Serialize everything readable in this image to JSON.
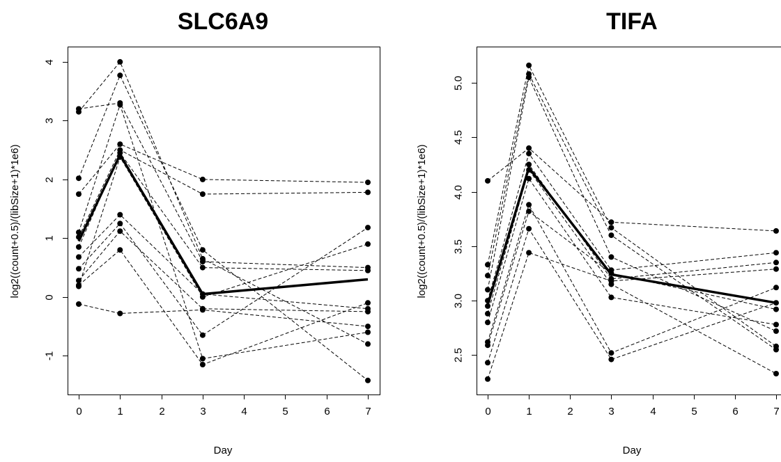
{
  "chart_data": [
    {
      "type": "line",
      "title": "SLC6A9",
      "xlabel": "Day",
      "ylabel": "log2((count+0.5)/(libSize+1)*1e6)",
      "x": [
        0,
        1,
        3,
        7
      ],
      "xlim": [
        0,
        7
      ],
      "ylim": [
        -1.6,
        4.2
      ],
      "x_ticks": [
        "0",
        "1",
        "2",
        "3",
        "4",
        "5",
        "6",
        "7"
      ],
      "y_ticks": [
        "-1",
        "0",
        "1",
        "2",
        "3",
        "4"
      ],
      "series": [
        {
          "values": [
            3.2,
            3.3,
            0.6,
            0.5
          ]
        },
        {
          "values": [
            3.15,
            4.0,
            0.65,
            -0.8
          ]
        },
        {
          "values": [
            2.02,
            3.77,
            0.8,
            -1.42
          ]
        },
        {
          "values": [
            1.75,
            2.6,
            2.0,
            1.95
          ]
        },
        {
          "values": [
            1.1,
            3.27,
            -1.05,
            -0.6
          ]
        },
        {
          "values": [
            1.02,
            2.5,
            1.75,
            1.78
          ]
        },
        {
          "values": [
            0.85,
            2.45,
            0.5,
            0.45
          ]
        },
        {
          "values": [
            0.68,
            1.4,
            0.05,
            -0.2
          ]
        },
        {
          "values": [
            0.48,
            1.25,
            -0.65,
            1.18
          ]
        },
        {
          "values": [
            0.28,
            1.12,
            -0.2,
            -0.25
          ]
        },
        {
          "values": [
            0.2,
            0.8,
            -1.15,
            -0.1
          ]
        },
        {
          "values": [
            0.18,
            2.38,
            0.0,
            0.9
          ]
        },
        {
          "values": [
            -0.12,
            -0.28,
            -0.22,
            -0.5
          ]
        }
      ],
      "mean": {
        "values": [
          0.95,
          2.42,
          0.05,
          0.3
        ]
      }
    },
    {
      "type": "line",
      "title": "TIFA",
      "xlabel": "Day",
      "ylabel": "log2((count+0.5)/(libSize+1)*1e6)",
      "x": [
        0,
        1,
        3,
        7
      ],
      "xlim": [
        0,
        7
      ],
      "ylim": [
        2.17,
        5.3
      ],
      "x_ticks": [
        "0",
        "1",
        "2",
        "3",
        "4",
        "5",
        "6",
        "7"
      ],
      "y_ticks": [
        "2.5",
        "3.0",
        "3.5",
        "4.0",
        "4.5",
        "5.0"
      ],
      "series": [
        {
          "values": [
            4.1,
            4.4,
            3.72,
            3.64
          ]
        },
        {
          "values": [
            3.33,
            5.16,
            3.67,
            2.58
          ]
        },
        {
          "values": [
            3.23,
            5.08,
            3.6,
            2.55
          ]
        },
        {
          "values": [
            3.1,
            5.05,
            3.4,
            2.72
          ]
        },
        {
          "values": [
            3.0,
            4.35,
            3.28,
            3.44
          ]
        },
        {
          "values": [
            2.95,
            4.25,
            3.2,
            3.35
          ]
        },
        {
          "values": [
            2.88,
            4.2,
            3.15,
            2.33
          ]
        },
        {
          "values": [
            2.8,
            4.12,
            3.03,
            2.78
          ]
        },
        {
          "values": [
            2.62,
            3.88,
            2.52,
            3.12
          ]
        },
        {
          "values": [
            2.59,
            3.82,
            3.25,
            2.92
          ]
        },
        {
          "values": [
            2.43,
            3.66,
            2.46,
            2.98
          ]
        },
        {
          "values": [
            2.28,
            3.44,
            3.18,
            3.29
          ]
        }
      ],
      "mean": {
        "values": [
          2.96,
          4.22,
          3.24,
          2.98
        ]
      }
    }
  ]
}
